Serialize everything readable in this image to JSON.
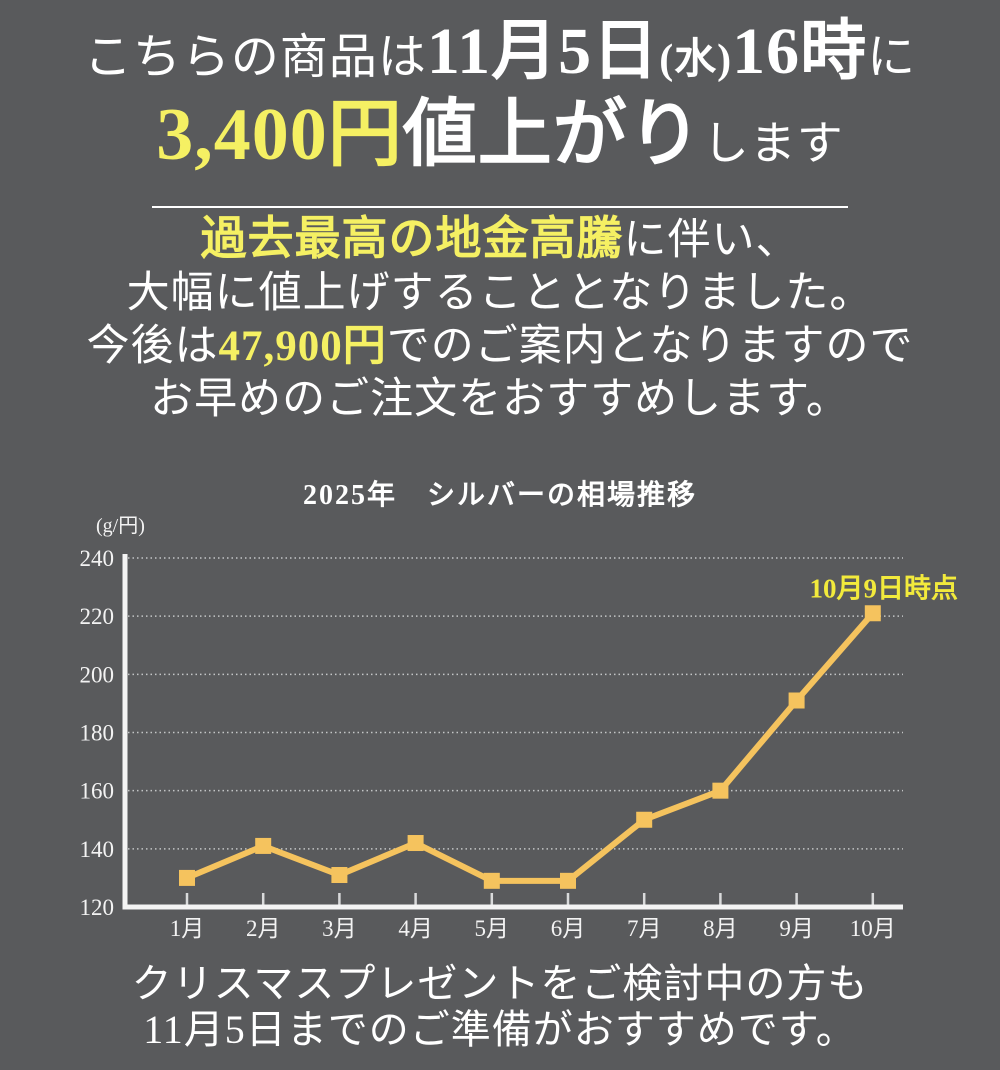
{
  "colors": {
    "background": "#595a5c",
    "text_white": "#ffffff",
    "highlight_yellow": "#f5f063",
    "annotation_yellow": "#f2ea3c",
    "chart_line": "#f5c35e",
    "axis_white": "#f4f4f4",
    "gridline": "#c3c5c6"
  },
  "header": {
    "l1_prefix": "こちらの商品は",
    "l1_date": "11月5日",
    "l1_weekday": "(水)",
    "l1_time": "16時",
    "l1_suffix": "に",
    "l2_price": "3,400円",
    "l2_emph": "値上がり",
    "l2_suffix": "します"
  },
  "paragraph": {
    "l1_highlight": "過去最高の地金高騰",
    "l1_rest": "に伴い、",
    "l2": "大幅に値上げすることとなりました。",
    "l3_prefix": "今後は",
    "l3_price": "47,900円",
    "l3_suffix": "でのご案内となりますので",
    "l4": "お早めのご注文をおすすめします。"
  },
  "footer": {
    "l1": "クリスマスプレゼントをご検討中の方も",
    "l2": "11月5日までのご準備がおすすめです。"
  },
  "chart_data": {
    "type": "line",
    "title": "2025年　シルバーの相場推移",
    "unit_label": "(g/円)",
    "categories": [
      "1月",
      "2月",
      "3月",
      "4月",
      "5月",
      "6月",
      "7月",
      "8月",
      "9月",
      "10月"
    ],
    "values": [
      130,
      141,
      131,
      142,
      129,
      129,
      150,
      160,
      191,
      221
    ],
    "ylim": [
      120,
      240
    ],
    "yticks": [
      120,
      140,
      160,
      180,
      200,
      220,
      240
    ],
    "grid": "horizontal-dotted",
    "legend": "none",
    "line_color": "#f5c35e",
    "marker": "square",
    "annotation": {
      "text": "10月9日時点",
      "at_category": "10月",
      "at_value": 221
    }
  }
}
